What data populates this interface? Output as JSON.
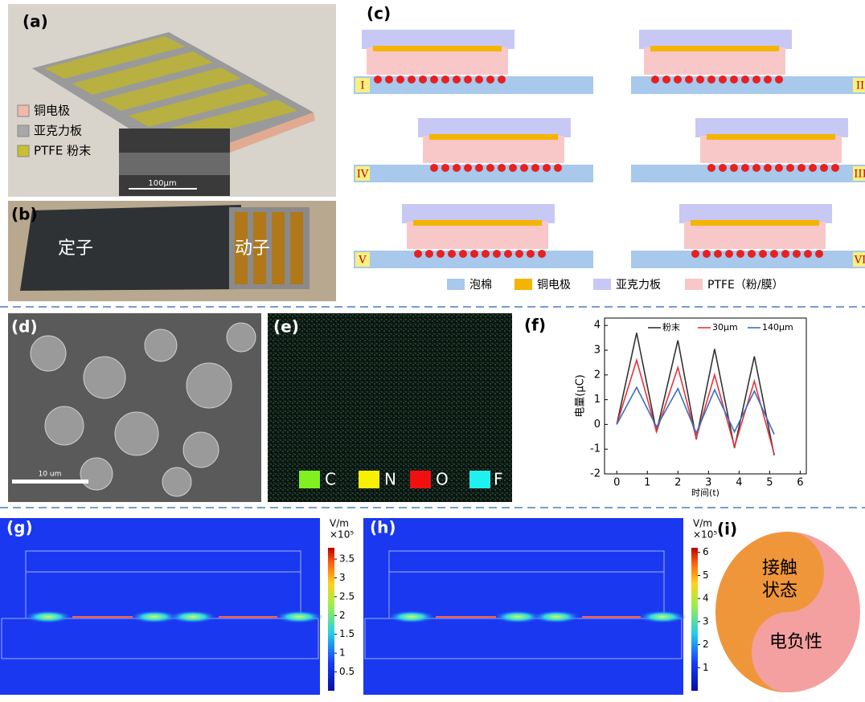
{
  "panels": {
    "a": {
      "label": "(a)",
      "legend": [
        "铜电极",
        "亚克力板",
        "PTFE 粉末"
      ],
      "scale_bar": "100μm"
    },
    "b": {
      "label": "(b)",
      "stator": "定子",
      "mover": "动子"
    },
    "c": {
      "label": "(c)",
      "stages": [
        "I",
        "II",
        "III",
        "IV",
        "V",
        "VI"
      ],
      "legend": [
        "泡棉",
        "铜电极",
        "亚克力板",
        "PTFE（粉/膜）"
      ]
    },
    "d": {
      "label": "(d)",
      "scale_bar": "10 um"
    },
    "e": {
      "label": "(e)",
      "elements": [
        "C",
        "N",
        "O",
        "F"
      ]
    },
    "f": {
      "label": "(f)"
    },
    "g": {
      "label": "(g)",
      "unit": "V/m",
      "factor": "×10⁵",
      "colorbar_range": [
        0,
        3.8
      ],
      "colorbar_ticks": [
        0.5,
        1,
        1.5,
        2,
        2.5,
        3,
        3.5
      ]
    },
    "h": {
      "label": "(h)",
      "unit": "V/m",
      "factor": "×10⁵",
      "colorbar_range": [
        0,
        6.2
      ],
      "colorbar_ticks": [
        1,
        2,
        3,
        4,
        5,
        6
      ]
    },
    "i": {
      "label": "(i)",
      "top": "接触",
      "top2": "状态",
      "bottom": "电负性"
    }
  },
  "chart_data": {
    "type": "line",
    "x_label": "时间(t)",
    "y_label": "电量(μC)",
    "x": [
      0,
      0.65,
      1.3,
      2.0,
      2.6,
      3.2,
      3.85,
      4.5,
      5.15
    ],
    "series": [
      {
        "name": "粉末",
        "color": "#333333",
        "values": [
          0,
          3.7,
          -0.3,
          3.4,
          -0.6,
          3.05,
          -0.95,
          2.75,
          -1.25
        ]
      },
      {
        "name": "30μm",
        "color": "#e8333a",
        "values": [
          0,
          2.6,
          -0.3,
          2.3,
          -0.55,
          2.0,
          -0.9,
          1.75,
          -1.2
        ]
      },
      {
        "name": "140μm",
        "color": "#3a6fc4",
        "values": [
          0,
          1.5,
          -0.1,
          1.45,
          -0.35,
          1.4,
          -0.3,
          1.35,
          -0.4
        ]
      }
    ],
    "xlim": [
      -0.4,
      6.2
    ],
    "xticks": [
      0,
      1,
      2,
      3,
      4,
      5,
      6
    ],
    "ylim": [
      -2,
      4.3
    ],
    "yticks": [
      -2,
      -1,
      0,
      1,
      2,
      3,
      4
    ]
  }
}
